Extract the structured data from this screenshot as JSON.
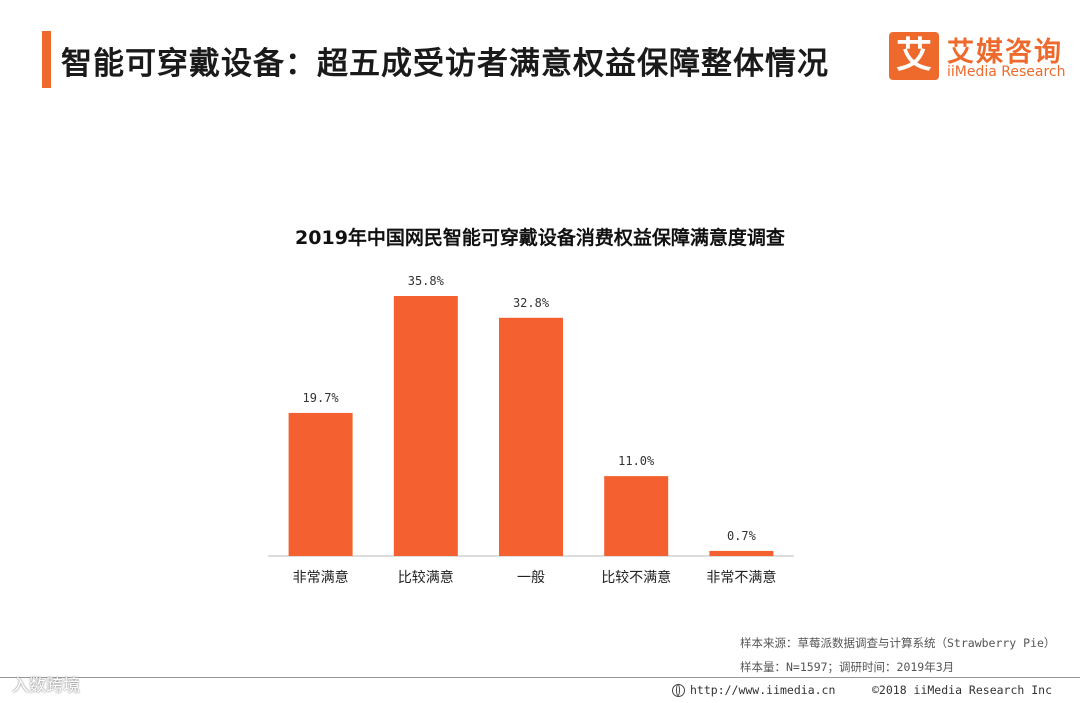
{
  "header": {
    "title": "智能可穿戴设备：超五成受访者满意权益保障整体情况",
    "logo_char": "艾",
    "logo_cn": "艾媒咨询",
    "logo_en": "iiMedia Research"
  },
  "chart_data": {
    "type": "bar",
    "title": "2019年中国网民智能可穿戴设备消费权益保障满意度调查",
    "categories": [
      "非常满意",
      "比较满意",
      "一般",
      "比较不满意",
      "非常不满意"
    ],
    "values": [
      19.7,
      35.8,
      32.8,
      11.0,
      0.7
    ],
    "value_labels": [
      "19.7%",
      "35.8%",
      "32.8%",
      "11.0%",
      "0.7%"
    ],
    "ylim": [
      0,
      35.8
    ],
    "bar_color": "#f4602f",
    "grid": false,
    "legend": "none"
  },
  "notes": {
    "source": "样本来源：草莓派数据调查与计算系统（Strawberry Pie）",
    "sample": "样本量：N=1597；调研时间：2019年3月"
  },
  "footer": {
    "url": "http://www.iimedia.cn",
    "copyright": "©2018  iiMedia Research  Inc",
    "watermark": "入数跨境"
  },
  "colors": {
    "accent": "#ee6a2c"
  }
}
